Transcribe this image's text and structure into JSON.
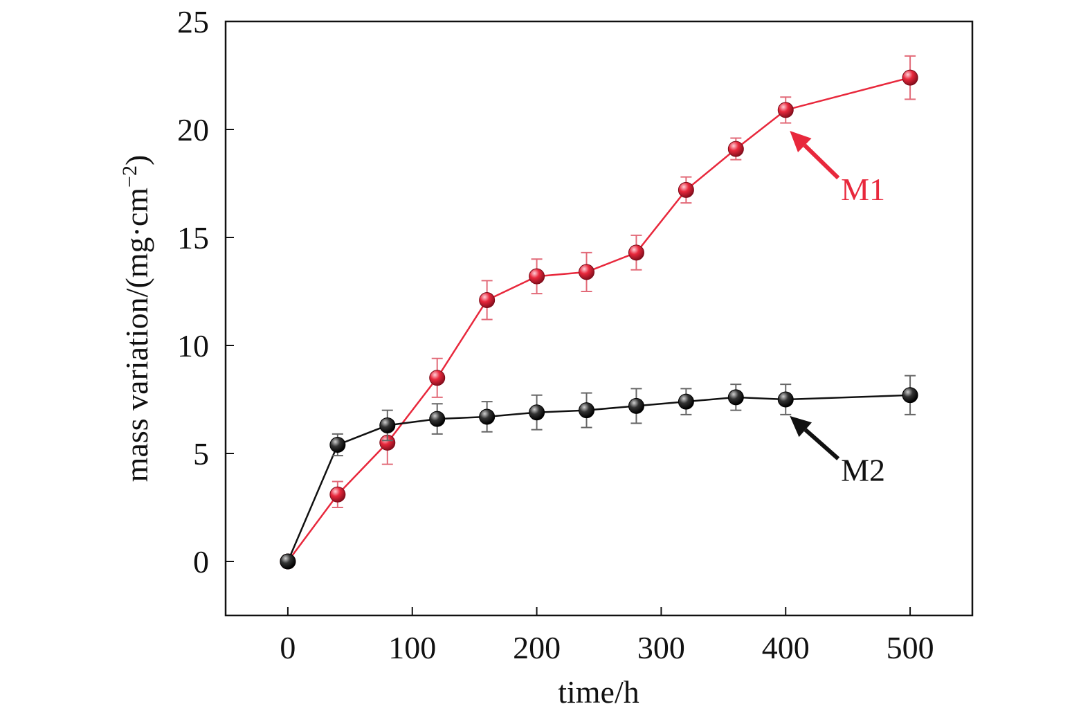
{
  "chart_data": {
    "type": "line",
    "xlabel": "time/h",
    "ylabel": "mass variation/(mg·cm",
    "ylabel_exponent": "−2",
    "ylabel_close": ")",
    "xlim": [
      -50,
      550
    ],
    "ylim": [
      -2.5,
      25
    ],
    "xticks": [
      0,
      100,
      200,
      300,
      400,
      500
    ],
    "yticks": [
      0,
      5,
      10,
      15,
      20,
      25
    ],
    "grid": false,
    "legend": "none",
    "series": [
      {
        "name": "M1",
        "color": "#e8283c",
        "x": [
          0,
          40,
          80,
          120,
          160,
          200,
          240,
          280,
          320,
          360,
          400,
          500
        ],
        "y": [
          0,
          3.1,
          5.5,
          8.5,
          12.1,
          13.2,
          13.4,
          14.3,
          17.2,
          19.1,
          20.9,
          22.4
        ],
        "err": [
          0,
          0.6,
          1.0,
          0.9,
          0.9,
          0.8,
          0.9,
          0.8,
          0.6,
          0.5,
          0.6,
          1.0
        ]
      },
      {
        "name": "M2",
        "color": "#111111",
        "x": [
          0,
          40,
          80,
          120,
          160,
          200,
          240,
          280,
          320,
          360,
          400,
          500
        ],
        "y": [
          0,
          5.4,
          6.3,
          6.6,
          6.7,
          6.9,
          7.0,
          7.2,
          7.4,
          7.6,
          7.5,
          7.7
        ],
        "err": [
          0,
          0.5,
          0.7,
          0.7,
          0.7,
          0.8,
          0.8,
          0.8,
          0.6,
          0.6,
          0.7,
          0.9
        ]
      }
    ],
    "annotations": [
      {
        "text": "M1",
        "color": "#e8283c",
        "point_x": 400,
        "point_y": 20.0,
        "label_x": 450,
        "label_y": 17.5
      },
      {
        "text": "M2",
        "color": "#111111",
        "point_x": 400,
        "point_y": 6.8,
        "label_x": 450,
        "label_y": 4.5
      }
    ]
  }
}
